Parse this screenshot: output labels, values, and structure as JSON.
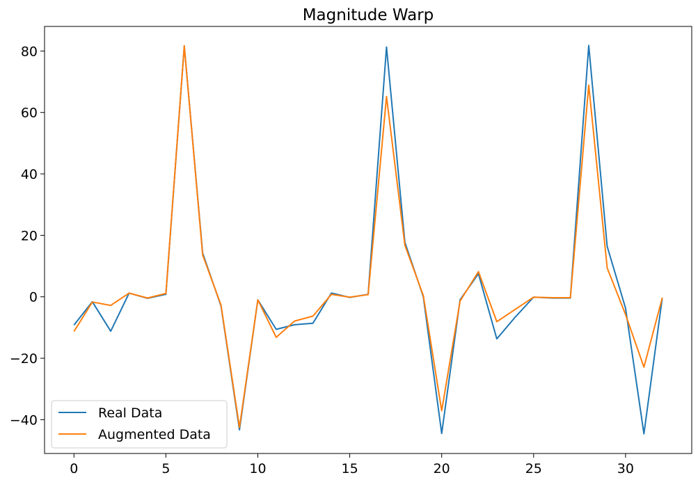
{
  "chart_data": {
    "type": "line",
    "title": "Magnitude Warp",
    "xlabel": "",
    "ylabel": "",
    "xlim": [
      -1.6,
      33.6
    ],
    "ylim": [
      -51,
      88
    ],
    "x_ticks": [
      0,
      5,
      10,
      15,
      20,
      25,
      30
    ],
    "y_ticks": [
      -40,
      -20,
      0,
      20,
      40,
      60,
      80
    ],
    "x": [
      0,
      1,
      2,
      3,
      4,
      5,
      6,
      7,
      8,
      9,
      10,
      11,
      12,
      13,
      14,
      15,
      16,
      17,
      18,
      19,
      20,
      21,
      22,
      23,
      24,
      25,
      26,
      27,
      28,
      29,
      30,
      31,
      32
    ],
    "legend_position": "lower-left",
    "grid": false,
    "series": [
      {
        "name": "Real Data",
        "color": "#1f77b4",
        "values": [
          -9.2,
          -1.6,
          -11.2,
          1.2,
          -0.5,
          0.8,
          81.6,
          14.2,
          -3.0,
          -43.3,
          -1.0,
          -10.6,
          -9.1,
          -8.6,
          1.2,
          -0.2,
          0.8,
          81.3,
          17.7,
          0.0,
          -44.5,
          -1.0,
          7.5,
          -13.7,
          -6.6,
          -0.1,
          -0.4,
          -0.4,
          81.8,
          16.4,
          -3.7,
          -44.6,
          -0.3
        ]
      },
      {
        "name": "Augmented Data",
        "color": "#ff7f0e",
        "values": [
          -11.3,
          -1.7,
          -2.8,
          1.2,
          -0.4,
          1.1,
          81.7,
          13.6,
          -2.7,
          -42.5,
          -1.0,
          -13.2,
          -7.9,
          -6.3,
          0.8,
          -0.1,
          0.7,
          65.2,
          16.8,
          0.4,
          -37.1,
          -1.4,
          8.2,
          -8.1,
          -4.1,
          -0.1,
          -0.3,
          -0.3,
          68.9,
          9.4,
          -5.8,
          -22.9,
          -0.3
        ]
      }
    ]
  }
}
